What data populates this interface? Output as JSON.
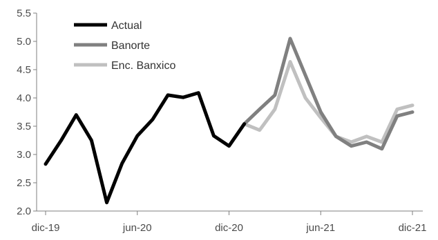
{
  "chart_data": {
    "type": "line",
    "title": "",
    "xlabel": "",
    "ylabel": "",
    "ylim": [
      2.0,
      5.5
    ],
    "yticks": [
      "2.0",
      "2.5",
      "3.0",
      "3.5",
      "4.0",
      "4.5",
      "5.0",
      "5.5"
    ],
    "xticks": [
      "dic-19",
      "jun-20",
      "dic-20",
      "jun-21",
      "dic-21"
    ],
    "grid": false,
    "legend_position": "top-left",
    "series": [
      {
        "name": "Actual",
        "color": "#000000",
        "x": [
          "dic-19",
          "ene-20",
          "feb-20",
          "mar-20",
          "abr-20",
          "may-20",
          "jun-20",
          "jul-20",
          "ago-20",
          "sep-20",
          "oct-20",
          "nov-20",
          "dic-20",
          "ene-21"
        ],
        "values": [
          2.83,
          3.24,
          3.7,
          3.25,
          2.15,
          2.84,
          3.33,
          3.62,
          4.05,
          4.01,
          4.09,
          3.33,
          3.15,
          3.54
        ]
      },
      {
        "name": "Banorte",
        "color": "#808080",
        "x": [
          "ene-21",
          "feb-21",
          "mar-21",
          "abr-21",
          "may-21",
          "jun-21",
          "jul-21",
          "ago-21",
          "sep-21",
          "oct-21",
          "nov-21",
          "dic-21"
        ],
        "values": [
          3.54,
          3.8,
          4.05,
          5.05,
          4.4,
          3.75,
          3.32,
          3.15,
          3.22,
          3.1,
          3.68,
          3.75
        ]
      },
      {
        "name": "Enc. Banxico",
        "color": "#c0c0c0",
        "x": [
          "ene-21",
          "feb-21",
          "mar-21",
          "abr-21",
          "may-21",
          "jun-21",
          "jul-21",
          "ago-21",
          "sep-21",
          "oct-21",
          "nov-21",
          "dic-21"
        ],
        "values": [
          3.54,
          3.43,
          3.8,
          4.64,
          4.0,
          3.65,
          3.32,
          3.22,
          3.32,
          3.22,
          3.8,
          3.87
        ]
      }
    ]
  }
}
